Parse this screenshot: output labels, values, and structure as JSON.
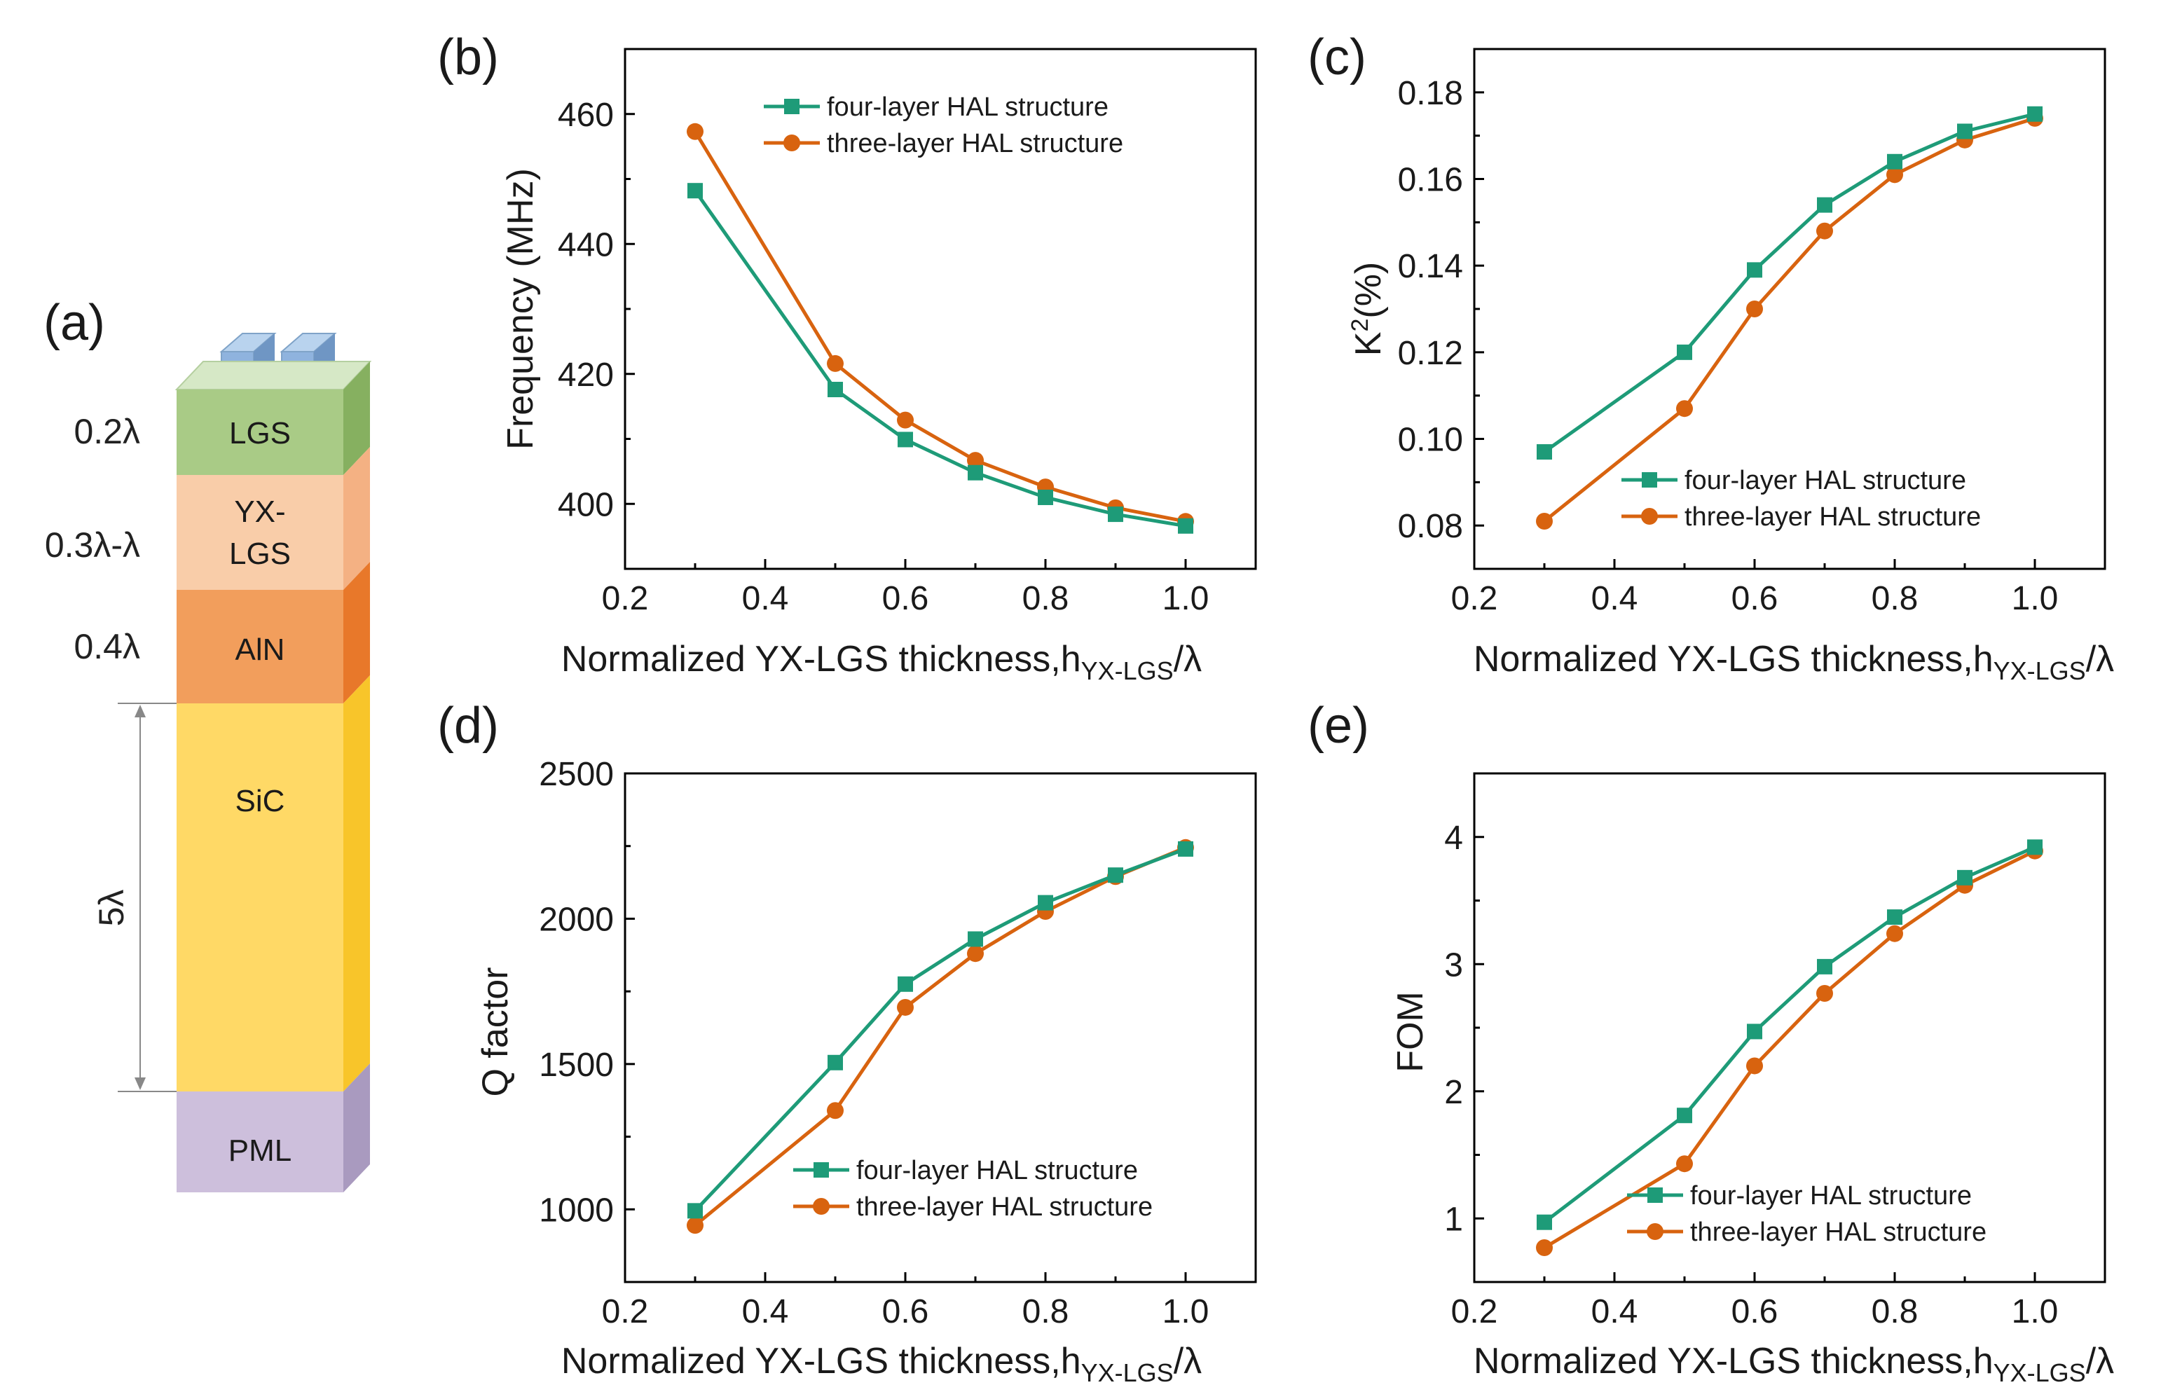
{
  "colors": {
    "four_layer": "#1e9b78",
    "three_layer": "#d8630f"
  },
  "panel_a": {
    "label": "(a)",
    "layers": [
      {
        "name": "LGS",
        "thickness": "0.2λ"
      },
      {
        "name_line1": "YX-",
        "name_line2": "LGS",
        "thickness": "0.3λ-λ"
      },
      {
        "name": "AlN",
        "thickness": "0.4λ"
      },
      {
        "name": "SiC",
        "thickness": "5λ"
      },
      {
        "name": "PML"
      }
    ]
  },
  "chart_data": [
    {
      "panel": "(b)",
      "type": "line",
      "ylabel": "Frequency (MHz)",
      "xlabel_main": "Normalized YX-LGS thickness,h",
      "xlabel_sub": "YX-LGS",
      "xlabel_tail": "/λ",
      "xlim": [
        0.2,
        1.1
      ],
      "ylim": [
        390,
        470
      ],
      "xticks": [
        "0.2",
        "0.4",
        "0.6",
        "0.8",
        "1.0"
      ],
      "yticks": [
        "400",
        "420",
        "440",
        "460"
      ],
      "x": [
        0.3,
        0.5,
        0.6,
        0.7,
        0.8,
        0.9,
        1.0
      ],
      "series": [
        {
          "name": "four-layer HAL structure",
          "marker": "square",
          "values": [
            448.2,
            417.6,
            409.9,
            404.8,
            401.0,
            398.4,
            396.6
          ]
        },
        {
          "name": "three-layer HAL structure",
          "marker": "circle",
          "values": [
            457.3,
            421.6,
            412.9,
            406.7,
            402.6,
            399.4,
            397.3
          ]
        }
      ],
      "legend": "top-right"
    },
    {
      "panel": "(c)",
      "type": "line",
      "ylabel_base": "K",
      "ylabel_sup": "2",
      "ylabel_tail": "(%)",
      "xlabel_main": "Normalized YX-LGS thickness,h",
      "xlabel_sub": "YX-LGS",
      "xlabel_tail": "/λ",
      "xlim": [
        0.2,
        1.1
      ],
      "ylim": [
        0.07,
        0.19
      ],
      "xticks": [
        "0.2",
        "0.4",
        "0.6",
        "0.8",
        "1.0"
      ],
      "yticks": [
        "0.08",
        "0.10",
        "0.12",
        "0.14",
        "0.16",
        "0.18"
      ],
      "x": [
        0.3,
        0.5,
        0.6,
        0.7,
        0.8,
        0.9,
        1.0
      ],
      "series": [
        {
          "name": "four-layer HAL structure",
          "marker": "square",
          "values": [
            0.097,
            0.12,
            0.139,
            0.154,
            0.164,
            0.171,
            0.175
          ]
        },
        {
          "name": "three-layer HAL structure",
          "marker": "circle",
          "values": [
            0.081,
            0.107,
            0.13,
            0.148,
            0.161,
            0.169,
            0.174
          ]
        }
      ],
      "legend": "bottom-right"
    },
    {
      "panel": "(d)",
      "type": "line",
      "ylabel": "Q factor",
      "xlabel_main": "Normalized YX-LGS thickness,h",
      "xlabel_sub": "YX-LGS",
      "xlabel_tail": "/λ",
      "xlim": [
        0.2,
        1.1
      ],
      "ylim": [
        750,
        2500
      ],
      "xticks": [
        "0.2",
        "0.4",
        "0.6",
        "0.8",
        "1.0"
      ],
      "yticks": [
        "1000",
        "1500",
        "2000",
        "2500"
      ],
      "x": [
        0.3,
        0.5,
        0.6,
        0.7,
        0.8,
        0.9,
        1.0
      ],
      "series": [
        {
          "name": "four-layer HAL structure",
          "marker": "square",
          "values": [
            995,
            1505,
            1775,
            1930,
            2055,
            2150,
            2240
          ]
        },
        {
          "name": "three-layer HAL structure",
          "marker": "circle",
          "values": [
            945,
            1340,
            1695,
            1880,
            2025,
            2145,
            2245
          ]
        }
      ],
      "legend": "bottom-right"
    },
    {
      "panel": "(e)",
      "type": "line",
      "ylabel": "FOM",
      "xlabel_main": "Normalized YX-LGS thickness,h",
      "xlabel_sub": "YX-LGS",
      "xlabel_tail": "/λ",
      "xlim": [
        0.2,
        1.1
      ],
      "ylim": [
        0.5,
        4.5
      ],
      "xticks": [
        "0.2",
        "0.4",
        "0.6",
        "0.8",
        "1.0"
      ],
      "yticks": [
        "1",
        "2",
        "3",
        "4"
      ],
      "x": [
        0.3,
        0.5,
        0.6,
        0.7,
        0.8,
        0.9,
        1.0
      ],
      "series": [
        {
          "name": "four-layer HAL structure",
          "marker": "square",
          "values": [
            0.97,
            1.81,
            2.47,
            2.98,
            3.37,
            3.68,
            3.92
          ]
        },
        {
          "name": "three-layer HAL structure",
          "marker": "circle",
          "values": [
            0.77,
            1.43,
            2.2,
            2.77,
            3.24,
            3.62,
            3.89
          ]
        }
      ],
      "legend": "bottom-right"
    }
  ]
}
